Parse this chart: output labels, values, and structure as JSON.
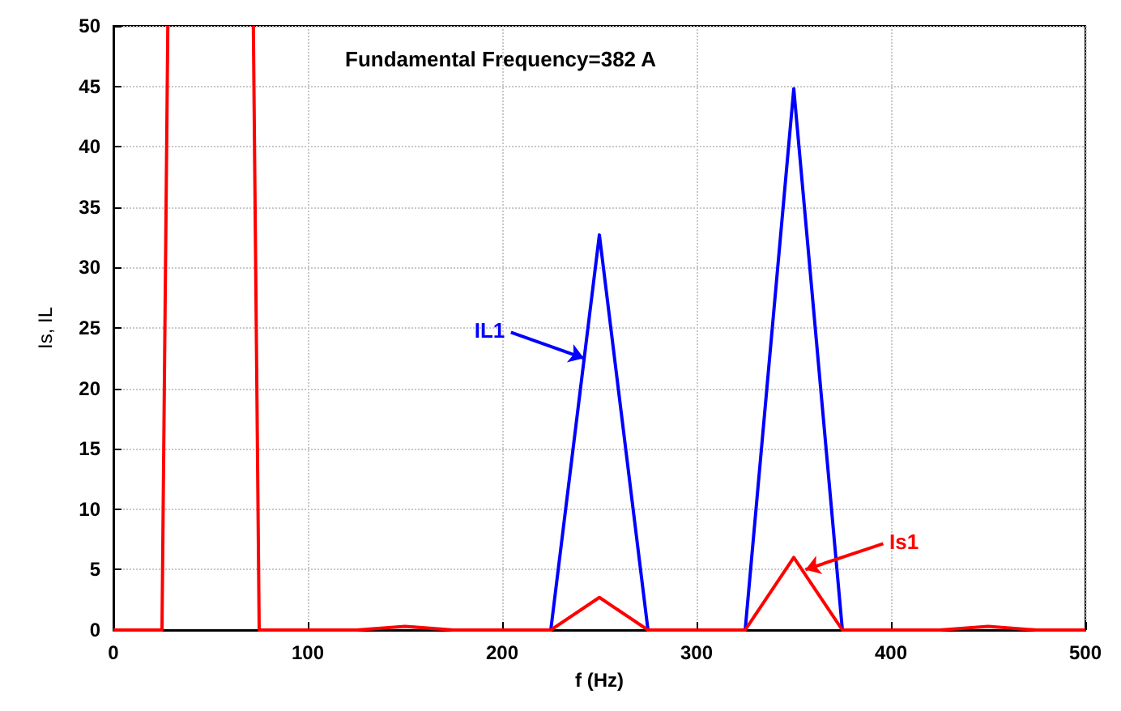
{
  "chart_data": {
    "type": "line",
    "xlabel": "f (Hz)",
    "ylabel": "Is, IL",
    "annotations": [
      "Fundamental Frequency=382 A",
      {
        "text": "IL1",
        "x": 242,
        "y": 22.5
      },
      {
        "text": "Is1",
        "x": 356,
        "y": 5
      }
    ],
    "series": [
      {
        "color": "#0000ff",
        "x": [
          225,
          250,
          275,
          300,
          325,
          350,
          375
        ],
        "values": [
          0,
          32.7,
          0,
          0,
          0,
          44.8,
          0
        ]
      },
      {
        "color": "#ff0000",
        "x": [
          0,
          25,
          28,
          50,
          72,
          75,
          100,
          125,
          150,
          175,
          200,
          225,
          250,
          275,
          300,
          325,
          350,
          375,
          400,
          425,
          450,
          475,
          500
        ],
        "values": [
          0,
          0,
          50,
          null,
          50,
          0,
          0,
          0,
          0.3,
          0,
          0,
          0,
          2.7,
          0,
          0,
          0,
          6,
          0,
          0,
          0,
          0.3,
          0,
          0
        ]
      }
    ],
    "xlim": [
      0,
      500
    ],
    "xticks": [
      0,
      100,
      200,
      300,
      400,
      500
    ],
    "ylim": [
      0,
      50
    ],
    "yticks": [
      0,
      5,
      10,
      15,
      20,
      25,
      30,
      35,
      40,
      45,
      50
    ],
    "grid": true,
    "marker": "none",
    "line_style": "solid"
  }
}
